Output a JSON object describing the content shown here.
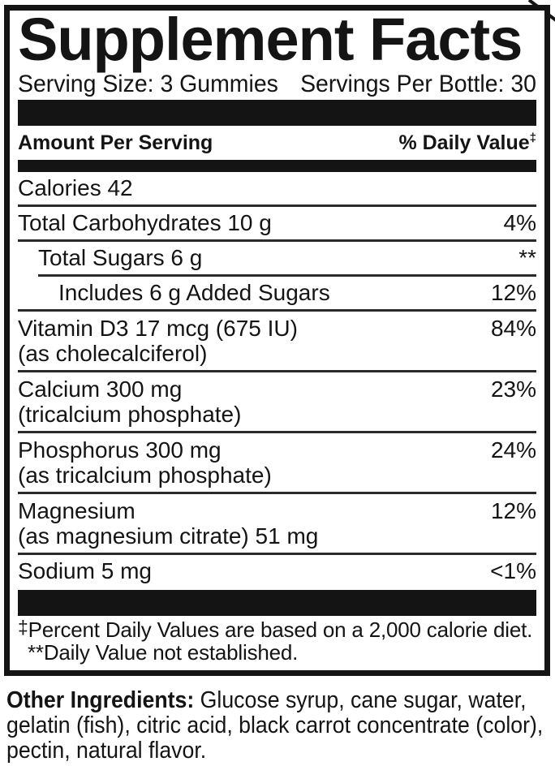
{
  "title": "Supplement Facts",
  "serving": {
    "size": "Serving Size: 3 Gummies",
    "per_bottle": "Servings Per Bottle: 30"
  },
  "header": {
    "amount": "Amount Per Serving",
    "daily_value": "% Daily Value",
    "daily_value_symbol": "‡"
  },
  "rows": {
    "calories": {
      "line1": "Calories 42",
      "value": ""
    },
    "total_carbohydrates": {
      "line1": "Total Carbohydrates 10 g",
      "value": "4%"
    },
    "total_sugars": {
      "line1": "Total Sugars 6 g",
      "value": "**"
    },
    "added_sugars": {
      "line1": "Includes 6 g Added Sugars",
      "value": "12%"
    },
    "vitamin_d3": {
      "line1": "Vitamin D3 17 mcg (675 IU)",
      "line2": "(as cholecalciferol)",
      "value": "84%"
    },
    "calcium": {
      "line1": "Calcium 300 mg",
      "line2": "(tricalcium phosphate)",
      "value": "23%"
    },
    "phosphorus": {
      "line1": "Phosphorus 300 mg",
      "line2": "(as tricalcium phosphate)",
      "value": "24%"
    },
    "magnesium": {
      "line1": "Magnesium",
      "line2": "(as magnesium citrate) 51 mg",
      "value": "12%"
    },
    "sodium": {
      "line1": "Sodium 5 mg",
      "value": "<1%"
    }
  },
  "footnotes": {
    "symbol": "‡",
    "daily_value_text": "Percent Daily Values are based on a 2,000 calorie diet.",
    "not_established_text": "**Daily Value not established."
  },
  "other_ingredients": {
    "label": "Other Ingredients:",
    "line1_rest": " Glucose syrup, cane sugar, water,",
    "line2": "gelatin (fish), citric acid, black carrot concentrate (color),",
    "line3": "pectin, natural flavor."
  },
  "colors": {
    "ink": "#141414",
    "sep": "#2b2b2b",
    "bg": "#ffffff"
  }
}
